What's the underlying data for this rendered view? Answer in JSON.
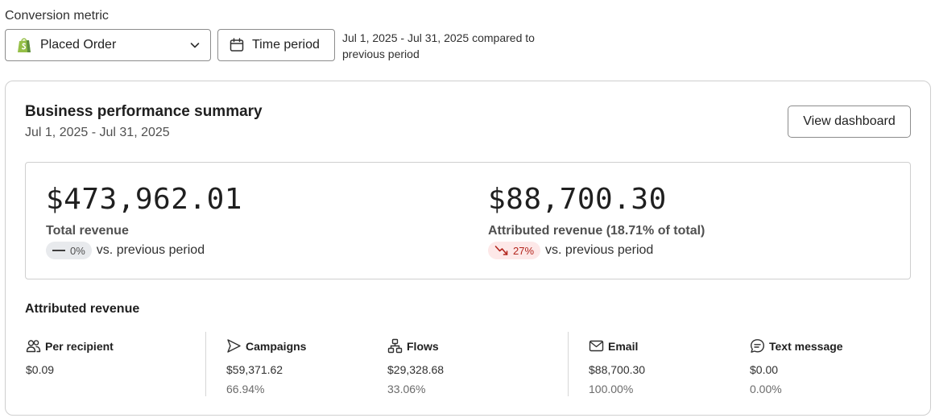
{
  "filters": {
    "metric_label": "Conversion metric",
    "metric_value": "Placed Order",
    "time_button": "Time period",
    "period_note": "Jul 1, 2025 - Jul 31, 2025 compared to previous period"
  },
  "summary": {
    "title": "Business performance summary",
    "date_range": "Jul 1, 2025 - Jul 31, 2025",
    "view_button": "View dashboard",
    "kpis": [
      {
        "value": "$473,962.01",
        "label": "Total revenue",
        "change": "0%",
        "change_direction": "neutral",
        "change_suffix": "vs. previous period"
      },
      {
        "value": "$88,700.30",
        "label": "Attributed revenue (18.71% of total)",
        "change": "27%",
        "change_direction": "down",
        "change_suffix": "vs. previous period"
      }
    ]
  },
  "attributed": {
    "title": "Attributed revenue",
    "columns": [
      {
        "icon": "people-icon",
        "label": "Per recipient",
        "value": "$0.09",
        "percent": ""
      },
      {
        "icon": "send-icon",
        "label": "Campaigns",
        "value": "$59,371.62",
        "percent": "66.94%"
      },
      {
        "icon": "flow-icon",
        "label": "Flows",
        "value": "$29,328.68",
        "percent": "33.06%"
      },
      {
        "icon": "mail-icon",
        "label": "Email",
        "value": "$88,700.30",
        "percent": "100.00%"
      },
      {
        "icon": "chat-icon",
        "label": "Text message",
        "value": "$0.00",
        "percent": "0.00%"
      }
    ]
  },
  "colors": {
    "shopify_green": "#95bf47",
    "negative_badge_bg": "#fde8e8",
    "negative_badge_text": "#b3261e",
    "neutral_badge_bg": "#e8eaed"
  }
}
